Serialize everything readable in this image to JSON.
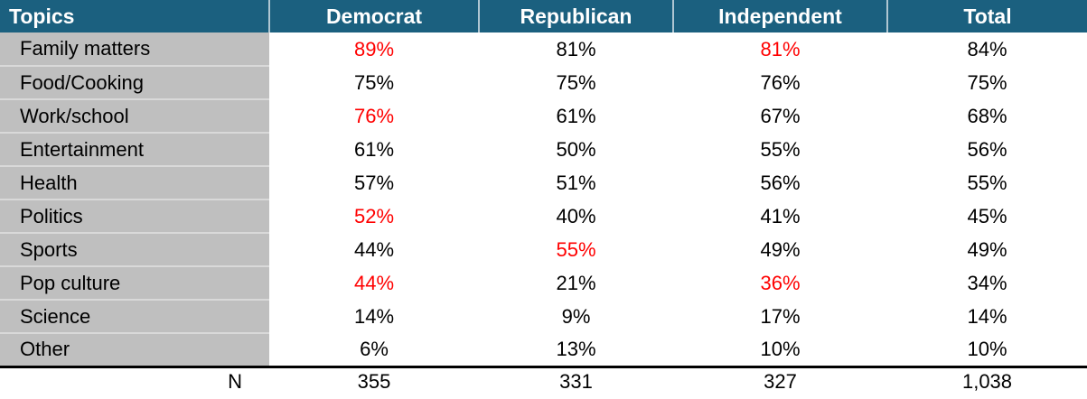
{
  "colors": {
    "header_bg": "#1B607F",
    "header_text": "#FFFFFF",
    "topic_column_bg": "#BFBFBF",
    "topic_row_separator": "#D9D9D9",
    "highlight_red": "#FF0000",
    "body_text": "#000000",
    "header_separator": "#AFC6D2"
  },
  "chart_data": {
    "type": "table",
    "columns": [
      "Topics",
      "Democrat",
      "Republican",
      "Independent",
      "Total"
    ],
    "rows": [
      {
        "topic": "Family matters",
        "values": [
          "89%",
          "81%",
          "81%",
          "84%"
        ],
        "highlight": [
          true,
          false,
          true,
          false
        ]
      },
      {
        "topic": "Food/Cooking",
        "values": [
          "75%",
          "75%",
          "76%",
          "75%"
        ],
        "highlight": [
          false,
          false,
          false,
          false
        ]
      },
      {
        "topic": "Work/school",
        "values": [
          "76%",
          "61%",
          "67%",
          "68%"
        ],
        "highlight": [
          true,
          false,
          false,
          false
        ]
      },
      {
        "topic": "Entertainment",
        "values": [
          "61%",
          "50%",
          "55%",
          "56%"
        ],
        "highlight": [
          false,
          false,
          false,
          false
        ]
      },
      {
        "topic": "Health",
        "values": [
          "57%",
          "51%",
          "56%",
          "55%"
        ],
        "highlight": [
          false,
          false,
          false,
          false
        ]
      },
      {
        "topic": "Politics",
        "values": [
          "52%",
          "40%",
          "41%",
          "45%"
        ],
        "highlight": [
          true,
          false,
          false,
          false
        ]
      },
      {
        "topic": "Sports",
        "values": [
          "44%",
          "55%",
          "49%",
          "49%"
        ],
        "highlight": [
          false,
          true,
          false,
          false
        ]
      },
      {
        "topic": "Pop culture",
        "values": [
          "44%",
          "21%",
          "36%",
          "34%"
        ],
        "highlight": [
          true,
          false,
          true,
          false
        ]
      },
      {
        "topic": "Science",
        "values": [
          "14%",
          "9%",
          "17%",
          "14%"
        ],
        "highlight": [
          false,
          false,
          false,
          false
        ]
      },
      {
        "topic": "Other",
        "values": [
          "6%",
          "13%",
          "10%",
          "10%"
        ],
        "highlight": [
          false,
          false,
          false,
          false
        ]
      }
    ],
    "footer": {
      "label": "N",
      "values": [
        "355",
        "331",
        "327",
        "1,038"
      ]
    }
  }
}
